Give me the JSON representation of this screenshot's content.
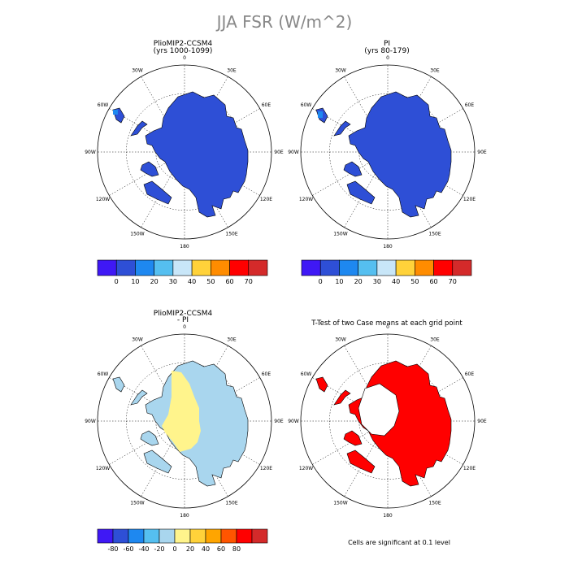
{
  "figure_title": "JJA FSR (W/m^2)",
  "footnote": "Cells are significant at 0.1 level",
  "panels": [
    {
      "title": "PlioMIP2-CCSM4",
      "subtitle": "(yrs 1000-1099)"
    },
    {
      "title": "PI",
      "subtitle": "(yrs 80-179)"
    },
    {
      "title": "PlioMIP2-CCSM4",
      "subtitle": "- PI"
    },
    {
      "title": "T-Test of two Case means at each grid point",
      "subtitle": ""
    }
  ],
  "longitude_labels": [
    "0",
    "30E",
    "60E",
    "90E",
    "120E",
    "150E",
    "180",
    "150W",
    "120W",
    "90W",
    "60W",
    "30W"
  ],
  "colorbars": {
    "absolute": {
      "colors": [
        "#3f18f5",
        "#2e4fd6",
        "#1e88f0",
        "#55bff0",
        "#c8e6f8",
        "#ffd23a",
        "#ff8c00",
        "#ff0000",
        "#d42a2a"
      ],
      "tick_labels": [
        "0",
        "10",
        "20",
        "30",
        "40",
        "50",
        "60",
        "70"
      ]
    },
    "difference": {
      "colors": [
        "#3f18f5",
        "#2e4fd6",
        "#1e88f0",
        "#55bff0",
        "#a9d6ee",
        "#fff48c",
        "#ffd23a",
        "#ffa500",
        "#ff5500",
        "#ff0000",
        "#d42a2a"
      ],
      "tick_labels": [
        "-80",
        "-60",
        "-40",
        "-20",
        "0",
        "20",
        "40",
        "60",
        "80"
      ]
    }
  },
  "map_fill_colors": {
    "absolute_land": "#2e4fd6",
    "difference_land": "#a9d6ee",
    "difference_interior": "#fff48c",
    "ttest_significant": "#ff0000"
  }
}
